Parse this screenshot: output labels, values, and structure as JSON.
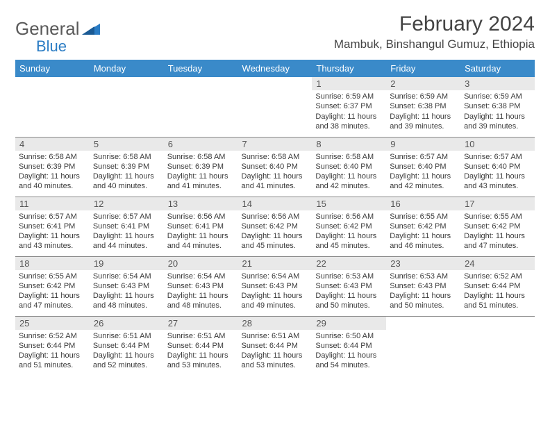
{
  "colors": {
    "header_bg": "#3a8ac9",
    "header_text": "#ffffff",
    "daynum_bg": "#e9e9e9",
    "daynum_text": "#555555",
    "body_text": "#3a3a3a",
    "title_text": "#444444",
    "logo_gray": "#5a5a5a",
    "logo_blue": "#2a7cc4",
    "row_border": "#888888",
    "page_bg": "#ffffff"
  },
  "logo": {
    "general": "General",
    "blue": "Blue"
  },
  "title": "February 2024",
  "location": "Mambuk, Binshangul Gumuz, Ethiopia",
  "day_headers": [
    "Sunday",
    "Monday",
    "Tuesday",
    "Wednesday",
    "Thursday",
    "Friday",
    "Saturday"
  ],
  "weeks": [
    [
      null,
      null,
      null,
      null,
      {
        "n": "1",
        "sr": "Sunrise: 6:59 AM",
        "ss": "Sunset: 6:37 PM",
        "d1": "Daylight: 11 hours",
        "d2": "and 38 minutes."
      },
      {
        "n": "2",
        "sr": "Sunrise: 6:59 AM",
        "ss": "Sunset: 6:38 PM",
        "d1": "Daylight: 11 hours",
        "d2": "and 39 minutes."
      },
      {
        "n": "3",
        "sr": "Sunrise: 6:59 AM",
        "ss": "Sunset: 6:38 PM",
        "d1": "Daylight: 11 hours",
        "d2": "and 39 minutes."
      }
    ],
    [
      {
        "n": "4",
        "sr": "Sunrise: 6:58 AM",
        "ss": "Sunset: 6:39 PM",
        "d1": "Daylight: 11 hours",
        "d2": "and 40 minutes."
      },
      {
        "n": "5",
        "sr": "Sunrise: 6:58 AM",
        "ss": "Sunset: 6:39 PM",
        "d1": "Daylight: 11 hours",
        "d2": "and 40 minutes."
      },
      {
        "n": "6",
        "sr": "Sunrise: 6:58 AM",
        "ss": "Sunset: 6:39 PM",
        "d1": "Daylight: 11 hours",
        "d2": "and 41 minutes."
      },
      {
        "n": "7",
        "sr": "Sunrise: 6:58 AM",
        "ss": "Sunset: 6:40 PM",
        "d1": "Daylight: 11 hours",
        "d2": "and 41 minutes."
      },
      {
        "n": "8",
        "sr": "Sunrise: 6:58 AM",
        "ss": "Sunset: 6:40 PM",
        "d1": "Daylight: 11 hours",
        "d2": "and 42 minutes."
      },
      {
        "n": "9",
        "sr": "Sunrise: 6:57 AM",
        "ss": "Sunset: 6:40 PM",
        "d1": "Daylight: 11 hours",
        "d2": "and 42 minutes."
      },
      {
        "n": "10",
        "sr": "Sunrise: 6:57 AM",
        "ss": "Sunset: 6:40 PM",
        "d1": "Daylight: 11 hours",
        "d2": "and 43 minutes."
      }
    ],
    [
      {
        "n": "11",
        "sr": "Sunrise: 6:57 AM",
        "ss": "Sunset: 6:41 PM",
        "d1": "Daylight: 11 hours",
        "d2": "and 43 minutes."
      },
      {
        "n": "12",
        "sr": "Sunrise: 6:57 AM",
        "ss": "Sunset: 6:41 PM",
        "d1": "Daylight: 11 hours",
        "d2": "and 44 minutes."
      },
      {
        "n": "13",
        "sr": "Sunrise: 6:56 AM",
        "ss": "Sunset: 6:41 PM",
        "d1": "Daylight: 11 hours",
        "d2": "and 44 minutes."
      },
      {
        "n": "14",
        "sr": "Sunrise: 6:56 AM",
        "ss": "Sunset: 6:42 PM",
        "d1": "Daylight: 11 hours",
        "d2": "and 45 minutes."
      },
      {
        "n": "15",
        "sr": "Sunrise: 6:56 AM",
        "ss": "Sunset: 6:42 PM",
        "d1": "Daylight: 11 hours",
        "d2": "and 45 minutes."
      },
      {
        "n": "16",
        "sr": "Sunrise: 6:55 AM",
        "ss": "Sunset: 6:42 PM",
        "d1": "Daylight: 11 hours",
        "d2": "and 46 minutes."
      },
      {
        "n": "17",
        "sr": "Sunrise: 6:55 AM",
        "ss": "Sunset: 6:42 PM",
        "d1": "Daylight: 11 hours",
        "d2": "and 47 minutes."
      }
    ],
    [
      {
        "n": "18",
        "sr": "Sunrise: 6:55 AM",
        "ss": "Sunset: 6:42 PM",
        "d1": "Daylight: 11 hours",
        "d2": "and 47 minutes."
      },
      {
        "n": "19",
        "sr": "Sunrise: 6:54 AM",
        "ss": "Sunset: 6:43 PM",
        "d1": "Daylight: 11 hours",
        "d2": "and 48 minutes."
      },
      {
        "n": "20",
        "sr": "Sunrise: 6:54 AM",
        "ss": "Sunset: 6:43 PM",
        "d1": "Daylight: 11 hours",
        "d2": "and 48 minutes."
      },
      {
        "n": "21",
        "sr": "Sunrise: 6:54 AM",
        "ss": "Sunset: 6:43 PM",
        "d1": "Daylight: 11 hours",
        "d2": "and 49 minutes."
      },
      {
        "n": "22",
        "sr": "Sunrise: 6:53 AM",
        "ss": "Sunset: 6:43 PM",
        "d1": "Daylight: 11 hours",
        "d2": "and 50 minutes."
      },
      {
        "n": "23",
        "sr": "Sunrise: 6:53 AM",
        "ss": "Sunset: 6:43 PM",
        "d1": "Daylight: 11 hours",
        "d2": "and 50 minutes."
      },
      {
        "n": "24",
        "sr": "Sunrise: 6:52 AM",
        "ss": "Sunset: 6:44 PM",
        "d1": "Daylight: 11 hours",
        "d2": "and 51 minutes."
      }
    ],
    [
      {
        "n": "25",
        "sr": "Sunrise: 6:52 AM",
        "ss": "Sunset: 6:44 PM",
        "d1": "Daylight: 11 hours",
        "d2": "and 51 minutes."
      },
      {
        "n": "26",
        "sr": "Sunrise: 6:51 AM",
        "ss": "Sunset: 6:44 PM",
        "d1": "Daylight: 11 hours",
        "d2": "and 52 minutes."
      },
      {
        "n": "27",
        "sr": "Sunrise: 6:51 AM",
        "ss": "Sunset: 6:44 PM",
        "d1": "Daylight: 11 hours",
        "d2": "and 53 minutes."
      },
      {
        "n": "28",
        "sr": "Sunrise: 6:51 AM",
        "ss": "Sunset: 6:44 PM",
        "d1": "Daylight: 11 hours",
        "d2": "and 53 minutes."
      },
      {
        "n": "29",
        "sr": "Sunrise: 6:50 AM",
        "ss": "Sunset: 6:44 PM",
        "d1": "Daylight: 11 hours",
        "d2": "and 54 minutes."
      },
      null,
      null
    ]
  ]
}
